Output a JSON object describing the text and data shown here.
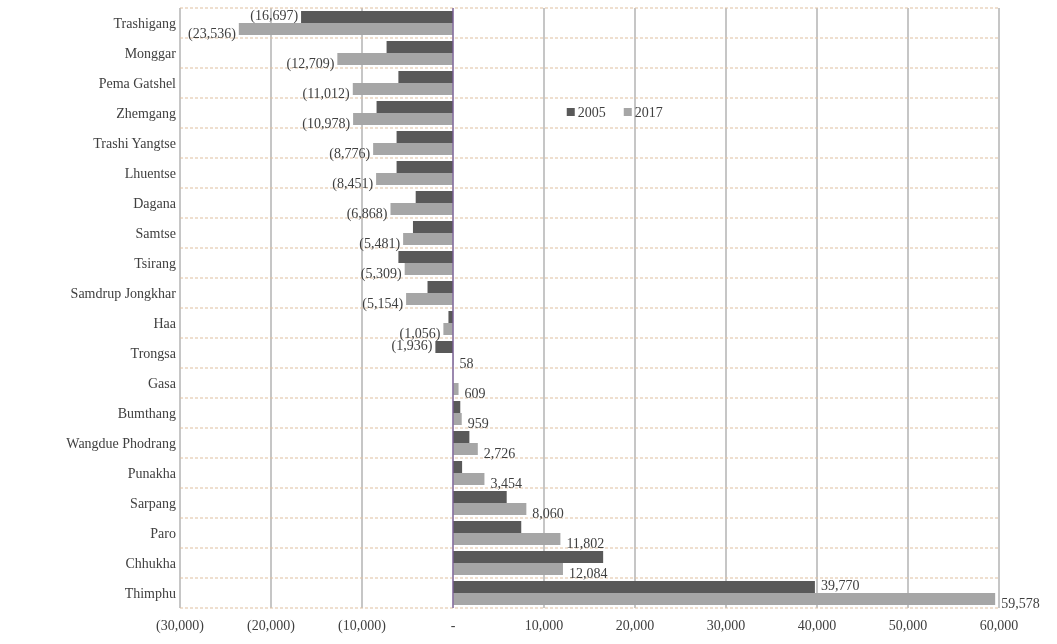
{
  "chart_data": {
    "type": "bar",
    "orientation": "horizontal",
    "categories": [
      "Trashigang",
      "Monggar",
      "Pema Gatshel",
      "Zhemgang",
      "Trashi Yangtse",
      "Lhuentse",
      "Dagana",
      "Samtse",
      "Tsirang",
      "Samdrup Jongkhar",
      "Haa",
      "Trongsa",
      "Gasa",
      "Bumthang",
      "Wangdue Phodrang",
      "Punakha",
      "Sarpang",
      "Paro",
      "Chhukha",
      "Thimphu"
    ],
    "series": [
      {
        "name": "2005",
        "color": "#595959",
        "values": [
          -16697,
          -7300,
          -6000,
          -8400,
          -6200,
          -6200,
          -4100,
          -4400,
          -6000,
          -2800,
          -500,
          -1936,
          null,
          800,
          1800,
          1000,
          5900,
          7500,
          16500,
          39770
        ],
        "value_labels": [
          "(16,697)",
          null,
          null,
          null,
          null,
          null,
          null,
          null,
          null,
          null,
          null,
          "(1,936)",
          null,
          null,
          null,
          null,
          null,
          null,
          null,
          "39,770"
        ]
      },
      {
        "name": "2017",
        "color": "#a6a6a6",
        "values": [
          -23536,
          -12709,
          -11012,
          -10978,
          -8776,
          -8451,
          -6868,
          -5481,
          -5309,
          -5154,
          -1056,
          58,
          609,
          959,
          2726,
          3454,
          8060,
          11802,
          12084,
          59578
        ],
        "value_labels": [
          "(23,536)",
          "(12,709)",
          "(11,012)",
          "(10,978)",
          "(8,776)",
          "(8,451)",
          "(6,868)",
          "(5,481)",
          "(5,309)",
          "(5,154)",
          "(1,056)",
          "58",
          "609",
          "959",
          "2,726",
          "3,454",
          "8,060",
          "11,802",
          "12,084",
          "59,578"
        ]
      }
    ],
    "xlim": [
      -30000,
      60000
    ],
    "xticks": [
      {
        "value": -30000,
        "label": "(30,000)"
      },
      {
        "value": -20000,
        "label": "(20,000)"
      },
      {
        "value": -10000,
        "label": "(10,000)"
      },
      {
        "value": 0,
        "label": "-"
      },
      {
        "value": 10000,
        "label": "10,000"
      },
      {
        "value": 20000,
        "label": "20,000"
      },
      {
        "value": 30000,
        "label": "30,000"
      },
      {
        "value": 40000,
        "label": "40,000"
      },
      {
        "value": 50000,
        "label": "50,000"
      },
      {
        "value": 60000,
        "label": "60,000"
      }
    ],
    "ref_lines": [
      {
        "axis": "x",
        "value": 0,
        "color": "#7f5fa0"
      }
    ],
    "grid": true,
    "legend": "top right"
  }
}
